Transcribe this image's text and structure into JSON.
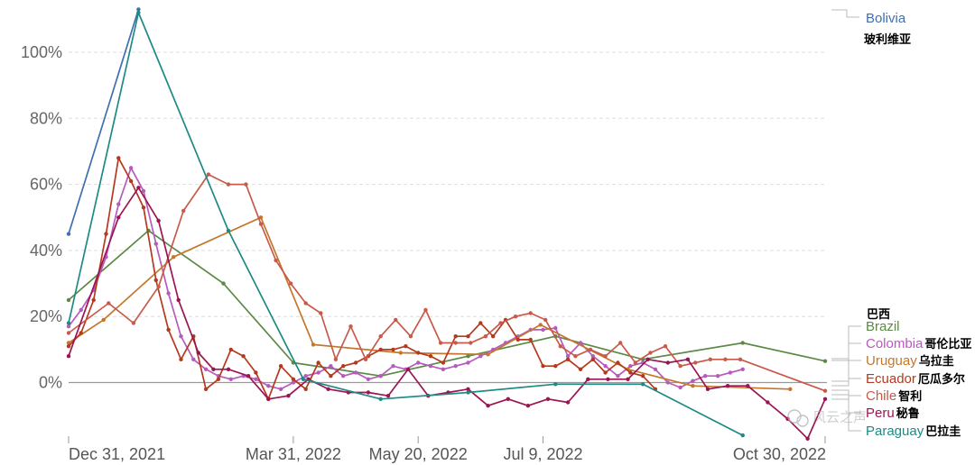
{
  "chart_data": {
    "type": "line",
    "x_axis": {
      "type": "date",
      "range": [
        "2021-12-31",
        "2022-10-30"
      ],
      "ticks": [
        {
          "date": "2021-12-31",
          "label": "Dec 31, 2021"
        },
        {
          "date": "2022-03-31",
          "label": "Mar 31, 2022"
        },
        {
          "date": "2022-05-20",
          "label": "May 20, 2022"
        },
        {
          "date": "2022-07-09",
          "label": "Jul 9, 2022"
        },
        {
          "date": "2022-10-30",
          "label": "Oct 30, 2022"
        }
      ]
    },
    "y_axis": {
      "range": [
        -17,
        113
      ],
      "ticks": [
        {
          "value": 0,
          "label": "0%"
        },
        {
          "value": 20,
          "label": "20%"
        },
        {
          "value": 40,
          "label": "40%"
        },
        {
          "value": 60,
          "label": "60%"
        },
        {
          "value": 80,
          "label": "80%"
        },
        {
          "value": 100,
          "label": "100%"
        }
      ],
      "gridlines": "dashed"
    },
    "legend_placement": "right",
    "series": [
      {
        "name": "Bolivia",
        "name_cn": "玻利维亚",
        "color": "#3e6fb0",
        "points": [
          [
            "2021-12-31",
            45
          ],
          [
            "2022-01-28",
            113
          ]
        ]
      },
      {
        "name": "Brazil",
        "name_cn": "巴西",
        "color": "#5a8a45",
        "points": [
          [
            "2021-12-31",
            25
          ],
          [
            "2022-02-01",
            46
          ],
          [
            "2022-03-03",
            30
          ],
          [
            "2022-03-31",
            6
          ],
          [
            "2022-05-05",
            2
          ],
          [
            "2022-06-09",
            8
          ],
          [
            "2022-07-14",
            14
          ],
          [
            "2022-08-18",
            7
          ],
          [
            "2022-09-27",
            12
          ],
          [
            "2022-10-30",
            6.5
          ]
        ]
      },
      {
        "name": "Colombia",
        "name_cn": "哥伦比亚",
        "color": "#b65bbd",
        "points": [
          [
            "2021-12-31",
            17
          ],
          [
            "2022-01-05",
            22
          ],
          [
            "2022-01-10",
            28
          ],
          [
            "2022-01-15",
            38
          ],
          [
            "2022-01-20",
            54
          ],
          [
            "2022-01-25",
            65
          ],
          [
            "2022-01-30",
            58
          ],
          [
            "2022-02-04",
            42
          ],
          [
            "2022-02-09",
            27
          ],
          [
            "2022-02-14",
            14
          ],
          [
            "2022-02-19",
            7
          ],
          [
            "2022-02-24",
            4
          ],
          [
            "2022-03-01",
            2
          ],
          [
            "2022-03-06",
            1
          ],
          [
            "2022-03-11",
            2
          ],
          [
            "2022-03-16",
            1
          ],
          [
            "2022-03-21",
            -1
          ],
          [
            "2022-03-26",
            -2
          ],
          [
            "2022-03-31",
            0
          ],
          [
            "2022-04-05",
            2
          ],
          [
            "2022-04-10",
            3
          ],
          [
            "2022-04-15",
            5
          ],
          [
            "2022-04-20",
            2
          ],
          [
            "2022-04-25",
            3
          ],
          [
            "2022-04-30",
            1
          ],
          [
            "2022-05-05",
            2
          ],
          [
            "2022-05-10",
            5
          ],
          [
            "2022-05-15",
            4
          ],
          [
            "2022-05-20",
            6
          ],
          [
            "2022-05-25",
            5
          ],
          [
            "2022-05-30",
            4
          ],
          [
            "2022-06-04",
            5
          ],
          [
            "2022-06-09",
            6
          ],
          [
            "2022-06-14",
            8
          ],
          [
            "2022-06-19",
            10
          ],
          [
            "2022-06-24",
            12
          ],
          [
            "2022-06-29",
            14
          ],
          [
            "2022-07-04",
            16
          ],
          [
            "2022-07-09",
            16
          ],
          [
            "2022-07-14",
            16.5
          ],
          [
            "2022-07-19",
            8
          ],
          [
            "2022-07-24",
            12
          ],
          [
            "2022-07-29",
            8
          ],
          [
            "2022-08-03",
            5
          ],
          [
            "2022-08-08",
            2
          ],
          [
            "2022-08-13",
            5
          ],
          [
            "2022-08-18",
            6
          ],
          [
            "2022-08-23",
            4
          ],
          [
            "2022-08-28",
            0
          ],
          [
            "2022-09-02",
            -1.5
          ],
          [
            "2022-09-07",
            0.5
          ],
          [
            "2022-09-12",
            2
          ],
          [
            "2022-09-17",
            2
          ],
          [
            "2022-09-22",
            3
          ],
          [
            "2022-09-27",
            4
          ]
        ]
      },
      {
        "name": "Uruguay",
        "name_cn": "乌拉圭",
        "color": "#c4772a",
        "points": [
          [
            "2021-12-31",
            12
          ],
          [
            "2022-01-14",
            19
          ],
          [
            "2022-02-11",
            38
          ],
          [
            "2022-03-18",
            50
          ],
          [
            "2022-04-08",
            11.5
          ],
          [
            "2022-05-13",
            9
          ],
          [
            "2022-06-17",
            8.5
          ],
          [
            "2022-07-08",
            17.5
          ],
          [
            "2022-08-12",
            4
          ],
          [
            "2022-09-07",
            -1
          ],
          [
            "2022-10-16",
            -2
          ]
        ]
      },
      {
        "name": "Ecuador",
        "name_cn": "厄瓜多尔",
        "color": "#b33a1e",
        "points": [
          [
            "2021-12-31",
            11
          ],
          [
            "2022-01-05",
            15
          ],
          [
            "2022-01-10",
            25
          ],
          [
            "2022-01-15",
            45
          ],
          [
            "2022-01-20",
            68
          ],
          [
            "2022-01-25",
            61
          ],
          [
            "2022-01-30",
            53
          ],
          [
            "2022-02-04",
            31
          ],
          [
            "2022-02-09",
            16
          ],
          [
            "2022-02-14",
            7
          ],
          [
            "2022-02-19",
            14
          ],
          [
            "2022-02-24",
            -2
          ],
          [
            "2022-03-01",
            1
          ],
          [
            "2022-03-06",
            10
          ],
          [
            "2022-03-11",
            8
          ],
          [
            "2022-03-16",
            3
          ],
          [
            "2022-03-21",
            -5
          ],
          [
            "2022-03-26",
            5
          ],
          [
            "2022-03-31",
            1
          ],
          [
            "2022-04-05",
            -2
          ],
          [
            "2022-04-10",
            6
          ],
          [
            "2022-04-15",
            2
          ],
          [
            "2022-04-20",
            5
          ],
          [
            "2022-04-25",
            6
          ],
          [
            "2022-04-30",
            8
          ],
          [
            "2022-05-05",
            10
          ],
          [
            "2022-05-10",
            10
          ],
          [
            "2022-05-15",
            11
          ],
          [
            "2022-05-20",
            9
          ],
          [
            "2022-05-25",
            8
          ],
          [
            "2022-05-30",
            6
          ],
          [
            "2022-06-04",
            14
          ],
          [
            "2022-06-09",
            14
          ],
          [
            "2022-06-14",
            18
          ],
          [
            "2022-06-19",
            14
          ],
          [
            "2022-06-24",
            19
          ],
          [
            "2022-06-29",
            13
          ],
          [
            "2022-07-04",
            13
          ],
          [
            "2022-07-09",
            5
          ],
          [
            "2022-07-14",
            5
          ],
          [
            "2022-07-19",
            7
          ],
          [
            "2022-07-24",
            4
          ],
          [
            "2022-07-29",
            7
          ],
          [
            "2022-08-03",
            3
          ],
          [
            "2022-08-08",
            6
          ],
          [
            "2022-08-13",
            3
          ],
          [
            "2022-08-18",
            2
          ],
          [
            "2022-08-23",
            -2
          ]
        ]
      },
      {
        "name": "Chile",
        "name_cn": "智利",
        "color": "#c85a4a",
        "points": [
          [
            "2021-12-31",
            15
          ],
          [
            "2022-01-16",
            24
          ],
          [
            "2022-01-26",
            18
          ],
          [
            "2022-02-05",
            29
          ],
          [
            "2022-02-15",
            52
          ],
          [
            "2022-02-25",
            63
          ],
          [
            "2022-03-05",
            60
          ],
          [
            "2022-03-12",
            60
          ],
          [
            "2022-03-18",
            48
          ],
          [
            "2022-03-24",
            37
          ],
          [
            "2022-03-30",
            30
          ],
          [
            "2022-04-05",
            24
          ],
          [
            "2022-04-11",
            21
          ],
          [
            "2022-04-17",
            7
          ],
          [
            "2022-04-23",
            17
          ],
          [
            "2022-04-29",
            7
          ],
          [
            "2022-05-05",
            14
          ],
          [
            "2022-05-11",
            19
          ],
          [
            "2022-05-17",
            14
          ],
          [
            "2022-05-23",
            22
          ],
          [
            "2022-05-29",
            12
          ],
          [
            "2022-06-04",
            12
          ],
          [
            "2022-06-10",
            12
          ],
          [
            "2022-06-16",
            14
          ],
          [
            "2022-06-22",
            18
          ],
          [
            "2022-06-28",
            20
          ],
          [
            "2022-07-04",
            21
          ],
          [
            "2022-07-10",
            19
          ],
          [
            "2022-07-16",
            11
          ],
          [
            "2022-07-22",
            8
          ],
          [
            "2022-07-28",
            10
          ],
          [
            "2022-08-03",
            8
          ],
          [
            "2022-08-09",
            12
          ],
          [
            "2022-08-15",
            6
          ],
          [
            "2022-08-21",
            9
          ],
          [
            "2022-08-27",
            11
          ],
          [
            "2022-09-02",
            5
          ],
          [
            "2022-09-08",
            6
          ],
          [
            "2022-09-14",
            7
          ],
          [
            "2022-09-20",
            7
          ],
          [
            "2022-09-26",
            7
          ],
          [
            "2022-10-30",
            -2.5
          ]
        ]
      },
      {
        "name": "Peru",
        "name_cn": "秘鲁",
        "color": "#9b1553",
        "points": [
          [
            "2021-12-31",
            8
          ],
          [
            "2022-01-20",
            50
          ],
          [
            "2022-01-28",
            59
          ],
          [
            "2022-02-05",
            49
          ],
          [
            "2022-02-13",
            25
          ],
          [
            "2022-02-21",
            9
          ],
          [
            "2022-02-27",
            4
          ],
          [
            "2022-03-05",
            4
          ],
          [
            "2022-03-13",
            2
          ],
          [
            "2022-03-21",
            -5
          ],
          [
            "2022-03-29",
            -4
          ],
          [
            "2022-04-06",
            1
          ],
          [
            "2022-04-14",
            -2
          ],
          [
            "2022-04-22",
            -3
          ],
          [
            "2022-04-30",
            -3
          ],
          [
            "2022-05-08",
            -4
          ],
          [
            "2022-05-16",
            4
          ],
          [
            "2022-05-24",
            -4
          ],
          [
            "2022-06-01",
            -3
          ],
          [
            "2022-06-09",
            -2
          ],
          [
            "2022-06-17",
            -7
          ],
          [
            "2022-06-25",
            -5
          ],
          [
            "2022-07-03",
            -7
          ],
          [
            "2022-07-11",
            -5
          ],
          [
            "2022-07-19",
            -6
          ],
          [
            "2022-07-27",
            1
          ],
          [
            "2022-08-04",
            1
          ],
          [
            "2022-08-12",
            1
          ],
          [
            "2022-08-20",
            7
          ],
          [
            "2022-08-28",
            6
          ],
          [
            "2022-09-05",
            7
          ],
          [
            "2022-09-13",
            -2
          ],
          [
            "2022-09-21",
            -1
          ],
          [
            "2022-09-29",
            -1
          ],
          [
            "2022-10-07",
            -6
          ],
          [
            "2022-10-15",
            -11
          ],
          [
            "2022-10-23",
            -17
          ],
          [
            "2022-10-30",
            -5
          ]
        ]
      },
      {
        "name": "Paraguay",
        "name_cn": "巴拉圭",
        "color": "#1d8a83",
        "points": [
          [
            "2021-12-31",
            18
          ],
          [
            "2022-01-28",
            112
          ],
          [
            "2022-03-05",
            46
          ],
          [
            "2022-04-04",
            1
          ],
          [
            "2022-05-05",
            -5
          ],
          [
            "2022-06-09",
            -3
          ],
          [
            "2022-07-14",
            -0.5
          ],
          [
            "2022-08-18",
            -0.5
          ],
          [
            "2022-09-27",
            -16
          ]
        ]
      }
    ]
  },
  "watermark": {
    "text": "风云之声",
    "icon": "wechat-icon"
  }
}
